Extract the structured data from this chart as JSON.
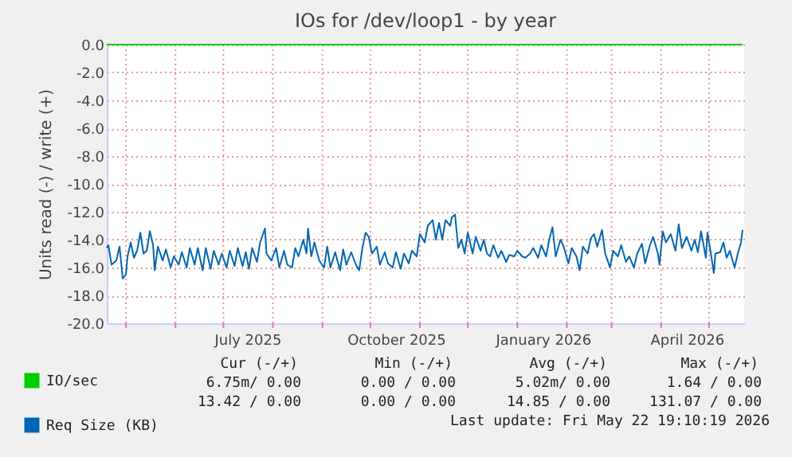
{
  "chart_data": {
    "type": "line",
    "title": "IOs for /dev/loop1 - by year",
    "ylabel": "Units read (-) / write (+)",
    "xlim": [
      "2025-04-19",
      "2026-05-23"
    ],
    "xticks": [
      {
        "value": "2025-05-01",
        "label": null
      },
      {
        "value": "2025-06-01",
        "label": null
      },
      {
        "value": "2025-07-01",
        "label": null
      },
      {
        "value": "2025-07-16",
        "label": "July 2025"
      },
      {
        "value": "2025-08-01",
        "label": null
      },
      {
        "value": "2025-09-01",
        "label": null
      },
      {
        "value": "2025-10-01",
        "label": null
      },
      {
        "value": "2025-10-17",
        "label": "October 2025"
      },
      {
        "value": "2025-11-01",
        "label": null
      },
      {
        "value": "2025-12-01",
        "label": null
      },
      {
        "value": "2026-01-01",
        "label": null
      },
      {
        "value": "2026-01-17",
        "label": "January 2026"
      },
      {
        "value": "2026-02-01",
        "label": null
      },
      {
        "value": "2026-03-01",
        "label": null
      },
      {
        "value": "2026-04-01",
        "label": null
      },
      {
        "value": "2026-04-17",
        "label": "April 2026"
      },
      {
        "value": "2026-05-01",
        "label": null
      }
    ],
    "ylim": [
      -20,
      0
    ],
    "yticks": [
      {
        "value": 0,
        "label": "0.0"
      },
      {
        "value": -2,
        "label": "-2.0"
      },
      {
        "value": -4,
        "label": "-4.0"
      },
      {
        "value": -6,
        "label": "-6.0"
      },
      {
        "value": -8,
        "label": "-8.0"
      },
      {
        "value": -10,
        "label": "-10.0"
      },
      {
        "value": -12,
        "label": "-12.0"
      },
      {
        "value": -14,
        "label": "-14.0"
      },
      {
        "value": -16,
        "label": "-16.0"
      },
      {
        "value": -18,
        "label": "-18.0"
      },
      {
        "value": -20,
        "label": "-20.0"
      }
    ],
    "grid": true,
    "legend": "bottom left",
    "series": [
      {
        "name": "IO/sec",
        "color": "#00cc00",
        "x": [
          "2025-04-19",
          "2026-05-22"
        ],
        "values": [
          0,
          0
        ]
      },
      {
        "name": "Req Size (KB)",
        "color": "#0066b3",
        "x": [
          "2025-04-19",
          "2025-04-20",
          "2025-04-22",
          "2025-04-25",
          "2025-04-27",
          "2025-04-29",
          "2025-05-01",
          "2025-05-02",
          "2025-05-04",
          "2025-05-06",
          "2025-05-08",
          "2025-05-10",
          "2025-05-12",
          "2025-05-14",
          "2025-05-16",
          "2025-05-18",
          "2025-05-19",
          "2025-05-21",
          "2025-05-24",
          "2025-05-26",
          "2025-05-29",
          "2025-05-31",
          "2025-06-03",
          "2025-06-05",
          "2025-06-08",
          "2025-06-10",
          "2025-06-13",
          "2025-06-15",
          "2025-06-18",
          "2025-06-20",
          "2025-06-23",
          "2025-06-25",
          "2025-06-28",
          "2025-06-30",
          "2025-07-03",
          "2025-07-05",
          "2025-07-08",
          "2025-07-10",
          "2025-07-13",
          "2025-07-15",
          "2025-07-17",
          "2025-07-19",
          "2025-07-22",
          "2025-07-24",
          "2025-07-27",
          "2025-07-28",
          "2025-07-31",
          "2025-08-03",
          "2025-08-05",
          "2025-08-08",
          "2025-08-10",
          "2025-08-13",
          "2025-08-15",
          "2025-08-17",
          "2025-08-20",
          "2025-08-22",
          "2025-08-23",
          "2025-08-25",
          "2025-08-27",
          "2025-08-30",
          "2025-09-02",
          "2025-09-04",
          "2025-09-06",
          "2025-09-09",
          "2025-09-12",
          "2025-09-14",
          "2025-09-16",
          "2025-09-19",
          "2025-09-22",
          "2025-09-24",
          "2025-09-26",
          "2025-09-28",
          "2025-09-30",
          "2025-10-02",
          "2025-10-05",
          "2025-10-07",
          "2025-10-10",
          "2025-10-12",
          "2025-10-15",
          "2025-10-17",
          "2025-10-20",
          "2025-10-22",
          "2025-10-25",
          "2025-10-27",
          "2025-10-30",
          "2025-11-01",
          "2025-11-04",
          "2025-11-06",
          "2025-11-09",
          "2025-11-11",
          "2025-11-13",
          "2025-11-15",
          "2025-11-17",
          "2025-11-20",
          "2025-11-21",
          "2025-11-23",
          "2025-11-25",
          "2025-11-27",
          "2025-11-29",
          "2025-12-01",
          "2025-12-04",
          "2025-12-06",
          "2025-12-09",
          "2025-12-11",
          "2025-12-13",
          "2025-12-15",
          "2025-12-17",
          "2025-12-20",
          "2025-12-22",
          "2025-12-25",
          "2025-12-27",
          "2025-12-30",
          "2026-01-01",
          "2026-01-04",
          "2026-01-06",
          "2026-01-09",
          "2026-01-11",
          "2026-01-14",
          "2026-01-16",
          "2026-01-19",
          "2026-01-21",
          "2026-01-23",
          "2026-01-25",
          "2026-01-28",
          "2026-01-30",
          "2026-02-02",
          "2026-02-04",
          "2026-02-07",
          "2026-02-09",
          "2026-02-11",
          "2026-02-14",
          "2026-02-16",
          "2026-02-18",
          "2026-02-20",
          "2026-02-23",
          "2026-02-25",
          "2026-02-28",
          "2026-03-02",
          "2026-03-05",
          "2026-03-07",
          "2026-03-10",
          "2026-03-12",
          "2026-03-15",
          "2026-03-17",
          "2026-03-20",
          "2026-03-22",
          "2026-03-25",
          "2026-03-27",
          "2026-03-30",
          "2026-03-31",
          "2026-04-02",
          "2026-04-04",
          "2026-04-07",
          "2026-04-10",
          "2026-04-12",
          "2026-04-14",
          "2026-04-17",
          "2026-04-20",
          "2026-04-22",
          "2026-04-24",
          "2026-04-26",
          "2026-04-29",
          "2026-04-30",
          "2026-05-02",
          "2026-05-04",
          "2026-05-05",
          "2026-05-08",
          "2026-05-10",
          "2026-05-12",
          "2026-05-14",
          "2026-05-17",
          "2026-05-19",
          "2026-05-21",
          "2026-05-22"
        ],
        "values": [
          -14.6,
          -14.4,
          -15.8,
          -15.5,
          -14.5,
          -16.8,
          -16.5,
          -15.2,
          -14.2,
          -15.3,
          -14.8,
          -13.5,
          -15.0,
          -14.8,
          -13.4,
          -14.4,
          -16.2,
          -14.5,
          -15.5,
          -14.7,
          -16.0,
          -15.2,
          -15.8,
          -14.9,
          -16.0,
          -14.6,
          -15.8,
          -14.6,
          -16.2,
          -14.6,
          -16.1,
          -14.8,
          -15.8,
          -15.0,
          -16.0,
          -14.8,
          -15.9,
          -14.6,
          -15.9,
          -14.9,
          -16.1,
          -14.6,
          -15.6,
          -14.2,
          -13.2,
          -15.0,
          -15.5,
          -14.6,
          -16.0,
          -14.8,
          -15.8,
          -16.0,
          -14.6,
          -15.2,
          -14.0,
          -15.0,
          -13.2,
          -15.2,
          -14.2,
          -15.5,
          -16.0,
          -14.5,
          -16.0,
          -14.9,
          -16.2,
          -14.7,
          -15.8,
          -14.9,
          -15.8,
          -16.2,
          -14.6,
          -13.5,
          -13.8,
          -15.0,
          -14.5,
          -15.8,
          -14.9,
          -15.7,
          -16.0,
          -14.9,
          -16.1,
          -15.0,
          -15.7,
          -14.8,
          -15.2,
          -13.6,
          -14.2,
          -13.0,
          -12.6,
          -14.0,
          -12.8,
          -14.0,
          -12.6,
          -13.0,
          -12.4,
          -12.2,
          -14.6,
          -14.0,
          -15.0,
          -13.5,
          -15.0,
          -13.8,
          -14.8,
          -14.0,
          -15.0,
          -15.2,
          -14.4,
          -15.3,
          -14.8,
          -15.6,
          -15.1,
          -15.2,
          -14.8,
          -15.2,
          -15.3,
          -15.0,
          -14.6,
          -15.3,
          -14.4,
          -15.2,
          -14.0,
          -13.1,
          -15.2,
          -14.0,
          -14.5,
          -15.7,
          -14.6,
          -15.2,
          -16.2,
          -14.5,
          -15.0,
          -13.9,
          -13.6,
          -14.5,
          -13.3,
          -15.0,
          -16.0,
          -14.8,
          -15.2,
          -14.4,
          -15.6,
          -15.2,
          -16.0,
          -15.0,
          -14.3,
          -15.7,
          -14.4,
          -13.8,
          -15.0,
          -15.8,
          -13.4,
          -14.2,
          -13.6,
          -14.8,
          -12.9,
          -14.6,
          -13.8,
          -14.8,
          -14.0,
          -14.9,
          -13.4,
          -15.3,
          -13.5,
          -14.9,
          -16.4,
          -15.0,
          -14.9,
          -14.2,
          -15.3,
          -14.8,
          -16.0,
          -15.0,
          -14.2,
          -13.3
        ]
      }
    ],
    "annotations": [
      "Cur (-/+)",
      "Min (-/+)",
      "Avg (-/+)",
      "Max (-/+)",
      "6.75m/ 0.00",
      "0.00 / 0.00",
      "5.02m/ 0.00",
      "1.64 / 0.00",
      "13.42 / 0.00",
      "0.00 / 0.00",
      "14.85 / 0.00",
      "131.07 / 0.00",
      "Last update: Fri May 22 19:10:19 2026"
    ]
  }
}
